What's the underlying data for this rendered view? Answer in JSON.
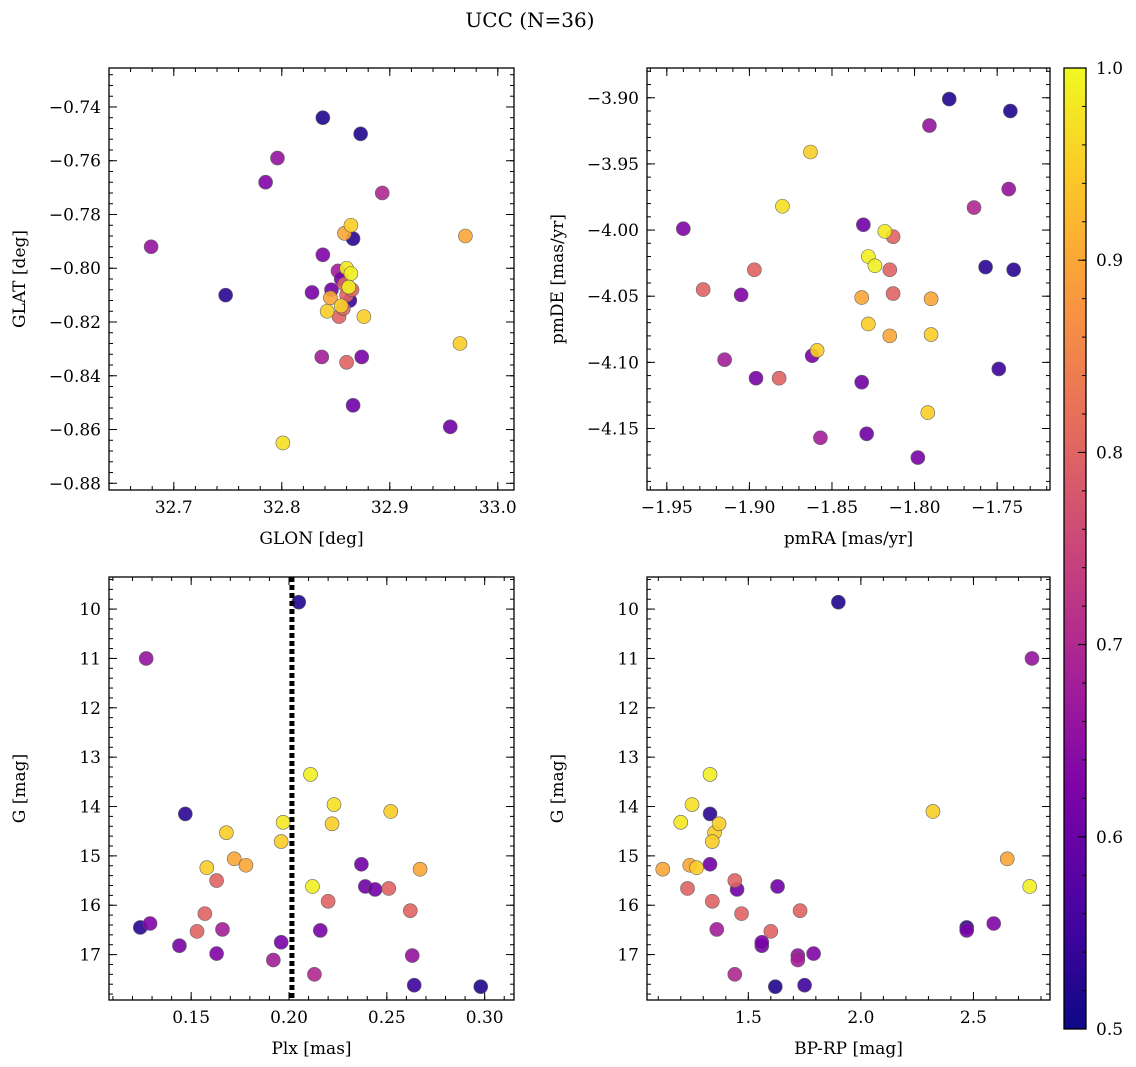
{
  "chart_data": {
    "title": "UCC (N=36)",
    "colormap": "plasma",
    "colorbar": {
      "range": [
        0.5,
        1.0
      ],
      "ticks": [
        "0.5",
        "0.6",
        "0.7",
        "0.8",
        "0.9",
        "1.0"
      ],
      "tick_values": [
        0.5,
        0.6,
        0.7,
        0.8,
        0.9,
        1.0
      ]
    },
    "stars": [
      {
        "glon": 32.838,
        "glat": -0.744,
        "pmra": -1.779,
        "pmde": -3.901,
        "plx": 0.205,
        "g": 9.86,
        "bprp": 1.9,
        "p": 0.52
      },
      {
        "glon": 32.873,
        "glat": -0.75,
        "pmra": -1.742,
        "pmde": -3.91,
        "plx": 0.298,
        "g": 17.65,
        "bprp": 1.62,
        "p": 0.52
      },
      {
        "glon": 32.796,
        "glat": -0.759,
        "pmra": -1.791,
        "pmde": -3.921,
        "plx": 0.127,
        "g": 11.0,
        "bprp": 2.76,
        "p": 0.66
      },
      {
        "glon": 32.785,
        "glat": -0.768,
        "pmra": -1.94,
        "pmde": -3.999,
        "plx": 0.163,
        "g": 16.98,
        "bprp": 1.79,
        "p": 0.63
      },
      {
        "glon": 32.893,
        "glat": -0.772,
        "pmra": -1.764,
        "pmde": -3.983,
        "plx": 0.213,
        "g": 17.4,
        "bprp": 1.44,
        "p": 0.7
      },
      {
        "glon": 32.679,
        "glat": -0.792,
        "pmra": -1.743,
        "pmde": -3.969,
        "plx": 0.263,
        "g": 17.02,
        "bprp": 1.72,
        "p": 0.66
      },
      {
        "glon": 32.748,
        "glat": -0.81,
        "pmra": -1.74,
        "pmde": -4.03,
        "plx": 0.147,
        "g": 14.15,
        "bprp": 1.33,
        "p": 0.53
      },
      {
        "glon": 32.866,
        "glat": -0.789,
        "pmra": -1.757,
        "pmde": -4.028,
        "plx": 0.124,
        "g": 16.45,
        "bprp": 2.47,
        "p": 0.53
      },
      {
        "glon": 32.838,
        "glat": -0.795,
        "pmra": -1.905,
        "pmde": -4.049,
        "plx": 0.129,
        "g": 16.37,
        "bprp": 2.59,
        "p": 0.63
      },
      {
        "glon": 32.828,
        "glat": -0.809,
        "pmra": -1.896,
        "pmde": -4.112,
        "plx": 0.144,
        "g": 16.82,
        "bprp": 1.56,
        "p": 0.62
      },
      {
        "glon": 32.852,
        "glat": -0.801,
        "pmra": -1.915,
        "pmde": -4.098,
        "plx": 0.166,
        "g": 16.49,
        "bprp": 1.36,
        "p": 0.68
      },
      {
        "glon": 32.855,
        "glat": -0.804,
        "pmra": -1.862,
        "pmde": -4.095,
        "plx": 0.196,
        "g": 16.75,
        "bprp": 1.56,
        "p": 0.62
      },
      {
        "glon": 32.837,
        "glat": -0.833,
        "pmra": -1.857,
        "pmde": -4.157,
        "plx": 0.192,
        "g": 17.11,
        "bprp": 1.72,
        "p": 0.68
      },
      {
        "glon": 32.874,
        "glat": -0.833,
        "pmra": -1.798,
        "pmde": -4.172,
        "plx": 0.216,
        "g": 16.51,
        "bprp": 2.47,
        "p": 0.62
      },
      {
        "glon": 32.956,
        "glat": -0.859,
        "pmra": -1.832,
        "pmde": -4.115,
        "plx": 0.237,
        "g": 15.17,
        "bprp": 1.33,
        "p": 0.61
      },
      {
        "glon": 32.866,
        "glat": -0.851,
        "pmra": -1.829,
        "pmde": -4.154,
        "plx": 0.239,
        "g": 15.62,
        "bprp": 1.63,
        "p": 0.61
      },
      {
        "glon": 32.846,
        "glat": -0.808,
        "pmra": -1.831,
        "pmde": -3.996,
        "plx": 0.244,
        "g": 15.68,
        "bprp": 1.45,
        "p": 0.61
      },
      {
        "glon": 32.863,
        "glat": -0.812,
        "pmra": -1.749,
        "pmde": -4.105,
        "plx": 0.264,
        "g": 17.62,
        "bprp": 1.75,
        "p": 0.55
      },
      {
        "glon": 32.853,
        "glat": -0.818,
        "pmra": -1.813,
        "pmde": -4.005,
        "plx": 0.153,
        "g": 16.53,
        "bprp": 1.6,
        "p": 0.8
      },
      {
        "glon": 32.858,
        "glat": -0.806,
        "pmra": -1.815,
        "pmde": -4.03,
        "plx": 0.157,
        "g": 16.17,
        "bprp": 1.47,
        "p": 0.8
      },
      {
        "glon": 32.857,
        "glat": -0.815,
        "pmra": -1.813,
        "pmde": -4.048,
        "plx": 0.163,
        "g": 15.5,
        "bprp": 1.44,
        "p": 0.8
      },
      {
        "glon": 32.86,
        "glat": -0.81,
        "pmra": -1.882,
        "pmde": -4.112,
        "plx": 0.22,
        "g": 15.92,
        "bprp": 1.34,
        "p": 0.8
      },
      {
        "glon": 32.865,
        "glat": -0.808,
        "pmra": -1.897,
        "pmde": -4.03,
        "plx": 0.251,
        "g": 15.66,
        "bprp": 1.23,
        "p": 0.8
      },
      {
        "glon": 32.86,
        "glat": -0.835,
        "pmra": -1.928,
        "pmde": -4.045,
        "plx": 0.262,
        "g": 16.11,
        "bprp": 1.73,
        "p": 0.8
      },
      {
        "glon": 32.97,
        "glat": -0.788,
        "pmra": -1.79,
        "pmde": -4.052,
        "plx": 0.267,
        "g": 15.27,
        "bprp": 1.12,
        "p": 0.9
      },
      {
        "glon": 32.845,
        "glat": -0.811,
        "pmra": -1.832,
        "pmde": -4.051,
        "plx": 0.172,
        "g": 15.06,
        "bprp": 2.65,
        "p": 0.9
      },
      {
        "glon": 32.858,
        "glat": -0.787,
        "pmra": -1.815,
        "pmde": -4.08,
        "plx": 0.178,
        "g": 15.19,
        "bprp": 1.24,
        "p": 0.9
      },
      {
        "glon": 32.855,
        "glat": -0.814,
        "pmra": -1.79,
        "pmde": -4.079,
        "plx": 0.158,
        "g": 15.24,
        "bprp": 1.27,
        "p": 0.95
      },
      {
        "glon": 32.842,
        "glat": -0.816,
        "pmra": -1.859,
        "pmde": -4.091,
        "plx": 0.168,
        "g": 14.53,
        "bprp": 1.35,
        "p": 0.95
      },
      {
        "glon": 32.864,
        "glat": -0.784,
        "pmra": -1.828,
        "pmde": -4.071,
        "plx": 0.196,
        "g": 14.71,
        "bprp": 1.34,
        "p": 0.95
      },
      {
        "glon": 32.876,
        "glat": -0.818,
        "pmra": -1.863,
        "pmde": -3.941,
        "plx": 0.222,
        "g": 14.35,
        "bprp": 1.37,
        "p": 0.95
      },
      {
        "glon": 32.965,
        "glat": -0.828,
        "pmra": -1.792,
        "pmde": -4.138,
        "plx": 0.252,
        "g": 14.1,
        "bprp": 2.32,
        "p": 0.95
      },
      {
        "glon": 32.801,
        "glat": -0.865,
        "pmra": -1.88,
        "pmde": -3.982,
        "plx": 0.223,
        "g": 13.96,
        "bprp": 1.25,
        "p": 0.97
      },
      {
        "glon": 32.86,
        "glat": -0.8,
        "pmra": -1.818,
        "pmde": -4.001,
        "plx": 0.197,
        "g": 14.32,
        "bprp": 1.2,
        "p": 0.98
      },
      {
        "glon": 32.864,
        "glat": -0.802,
        "pmra": -1.828,
        "pmde": -4.02,
        "plx": 0.211,
        "g": 13.35,
        "bprp": 1.33,
        "p": 0.99
      },
      {
        "glon": 32.862,
        "glat": -0.807,
        "pmra": -1.824,
        "pmde": -4.027,
        "plx": 0.212,
        "g": 15.62,
        "bprp": 2.75,
        "p": 0.99
      }
    ],
    "panels": [
      {
        "id": "sky",
        "type": "scatter",
        "xkey": "glon",
        "ykey": "glat",
        "xlabel": "GLON [deg]",
        "ylabel": "GLAT [deg]",
        "xlim": [
          32.64,
          33.015
        ],
        "ylim": [
          -0.8825,
          -0.7255
        ],
        "yinvert": false,
        "xticks": [
          32.7,
          32.8,
          32.9,
          33.0
        ],
        "xticklabels": [
          "32.7",
          "32.8",
          "32.9",
          "33.0"
        ],
        "yticks": [
          -0.74,
          -0.76,
          -0.78,
          -0.8,
          -0.82,
          -0.84,
          -0.86,
          -0.88
        ],
        "yticklabels": [
          "−0.74",
          "−0.76",
          "−0.78",
          "−0.80",
          "−0.82",
          "−0.84",
          "−0.86",
          "−0.88"
        ],
        "xminor": 0.02,
        "yminor": 0.004
      },
      {
        "id": "pm",
        "type": "scatter",
        "xkey": "pmra",
        "ykey": "pmde",
        "xlabel": "pmRA [mas/yr]",
        "ylabel": "pmDE [mas/yr]",
        "xlim": [
          -1.962,
          -1.718
        ],
        "ylim": [
          -4.1965,
          -3.8775
        ],
        "yinvert": false,
        "xticks": [
          -1.95,
          -1.9,
          -1.85,
          -1.8,
          -1.75
        ],
        "xticklabels": [
          "−1.95",
          "−1.90",
          "−1.85",
          "−1.80",
          "−1.75"
        ],
        "yticks": [
          -3.9,
          -3.95,
          -4.0,
          -4.05,
          -4.1,
          -4.15
        ],
        "yticklabels": [
          "−3.90",
          "−3.95",
          "−4.00",
          "−4.05",
          "−4.10",
          "−4.15"
        ],
        "xminor": 0.01,
        "yminor": 0.01
      },
      {
        "id": "plx",
        "type": "scatter",
        "xkey": "plx",
        "ykey": "g",
        "xlabel": "Plx [mas]",
        "ylabel": "G [mag]",
        "xlim": [
          0.108,
          0.315
        ],
        "ylim": [
          9.35,
          17.92
        ],
        "yinvert": true,
        "xticks": [
          0.15,
          0.2,
          0.25,
          0.3
        ],
        "xticklabels": [
          "0.15",
          "0.20",
          "0.25",
          "0.30"
        ],
        "yticks": [
          10,
          11,
          12,
          13,
          14,
          15,
          16,
          17
        ],
        "yticklabels": [
          "10",
          "11",
          "12",
          "13",
          "14",
          "15",
          "16",
          "17"
        ],
        "xminor": 0.01,
        "yminor": 0.2,
        "vline": 0.2015
      },
      {
        "id": "cmd",
        "type": "scatter",
        "xkey": "bprp",
        "ykey": "g",
        "xlabel": "BP-RP [mag]",
        "ylabel": "G [mag]",
        "xlim": [
          1.05,
          2.84
        ],
        "ylim": [
          9.35,
          17.92
        ],
        "yinvert": true,
        "xticks": [
          1.5,
          2.0,
          2.5
        ],
        "xticklabels": [
          "1.5",
          "2.0",
          "2.5"
        ],
        "yticks": [
          10,
          11,
          12,
          13,
          14,
          15,
          16,
          17
        ],
        "yticklabels": [
          "10",
          "11",
          "12",
          "13",
          "14",
          "15",
          "16",
          "17"
        ],
        "xminor": 0.1,
        "yminor": 0.2
      }
    ]
  }
}
